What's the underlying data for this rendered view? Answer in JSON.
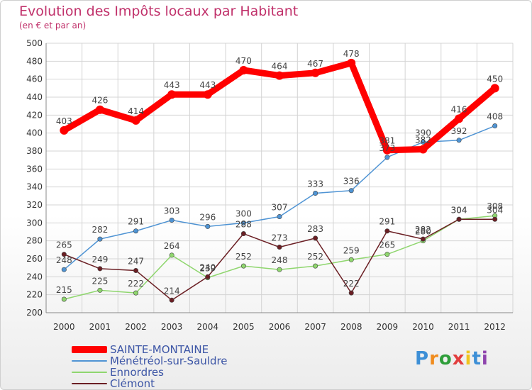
{
  "header": {
    "title": "Evolution des Impôts locaux par Habitant",
    "subtitle": "(en € et par an)"
  },
  "logo": {
    "text": "Proxiti",
    "colors": [
      "#3d8fd6",
      "#f08c1e",
      "#2e9e3a",
      "#e23d3d",
      "#f0c41e",
      "#3d8fd6",
      "#8e44ad"
    ]
  },
  "chart_data": {
    "type": "line",
    "title": "Evolution des Impôts locaux par Habitant",
    "subtitle": "(en € et par an)",
    "x": [
      "2000",
      "2001",
      "2002",
      "2003",
      "2004",
      "2005",
      "2006",
      "2007",
      "2008",
      "2009",
      "2010",
      "2011",
      "2012"
    ],
    "ylim": [
      200,
      500
    ],
    "yticks": [
      "200",
      "220",
      "240",
      "260",
      "280",
      "300",
      "320",
      "340",
      "360",
      "380",
      "400",
      "420",
      "440",
      "460",
      "480",
      "500"
    ],
    "grid": true,
    "legend_position": "bottom-left",
    "series": [
      {
        "name": "SAINTE-MONTAINE",
        "color": "#ff0000",
        "values": [
          403,
          426,
          414,
          443,
          443,
          470,
          464,
          467,
          478,
          381,
          382,
          416,
          450
        ],
        "labels": [
          "403",
          "426",
          "414",
          "443",
          "443",
          "470",
          "464",
          "467",
          "478",
          "381",
          "382",
          "416",
          "450"
        ]
      },
      {
        "name": "Ménétréol-sur-Sauldre",
        "color": "#4f94d4",
        "values": [
          248,
          282,
          291,
          303,
          296,
          300,
          307,
          333,
          336,
          373,
          390,
          392,
          408
        ],
        "labels": [
          "248",
          "282",
          "291",
          "303",
          "296",
          "300",
          "307",
          "333",
          "336",
          "373",
          "390",
          "392",
          "408"
        ]
      },
      {
        "name": "Ennordres",
        "color": "#8fd66e",
        "values": [
          215,
          225,
          222,
          264,
          239,
          252,
          248,
          252,
          259,
          265,
          280,
          304,
          308
        ],
        "labels": [
          "215",
          "225",
          "222",
          "264",
          "239",
          "252",
          "248",
          "252",
          "259",
          "265",
          "280",
          "304",
          "308"
        ]
      },
      {
        "name": "Clémont",
        "color": "#6b1f24",
        "values": [
          265,
          249,
          247,
          214,
          240,
          288,
          273,
          283,
          222,
          291,
          282,
          304,
          304
        ],
        "labels": [
          "265",
          "249",
          "247",
          "214",
          "240",
          "288",
          "273",
          "283",
          "222",
          "291",
          "282",
          "304",
          "304"
        ]
      }
    ]
  }
}
